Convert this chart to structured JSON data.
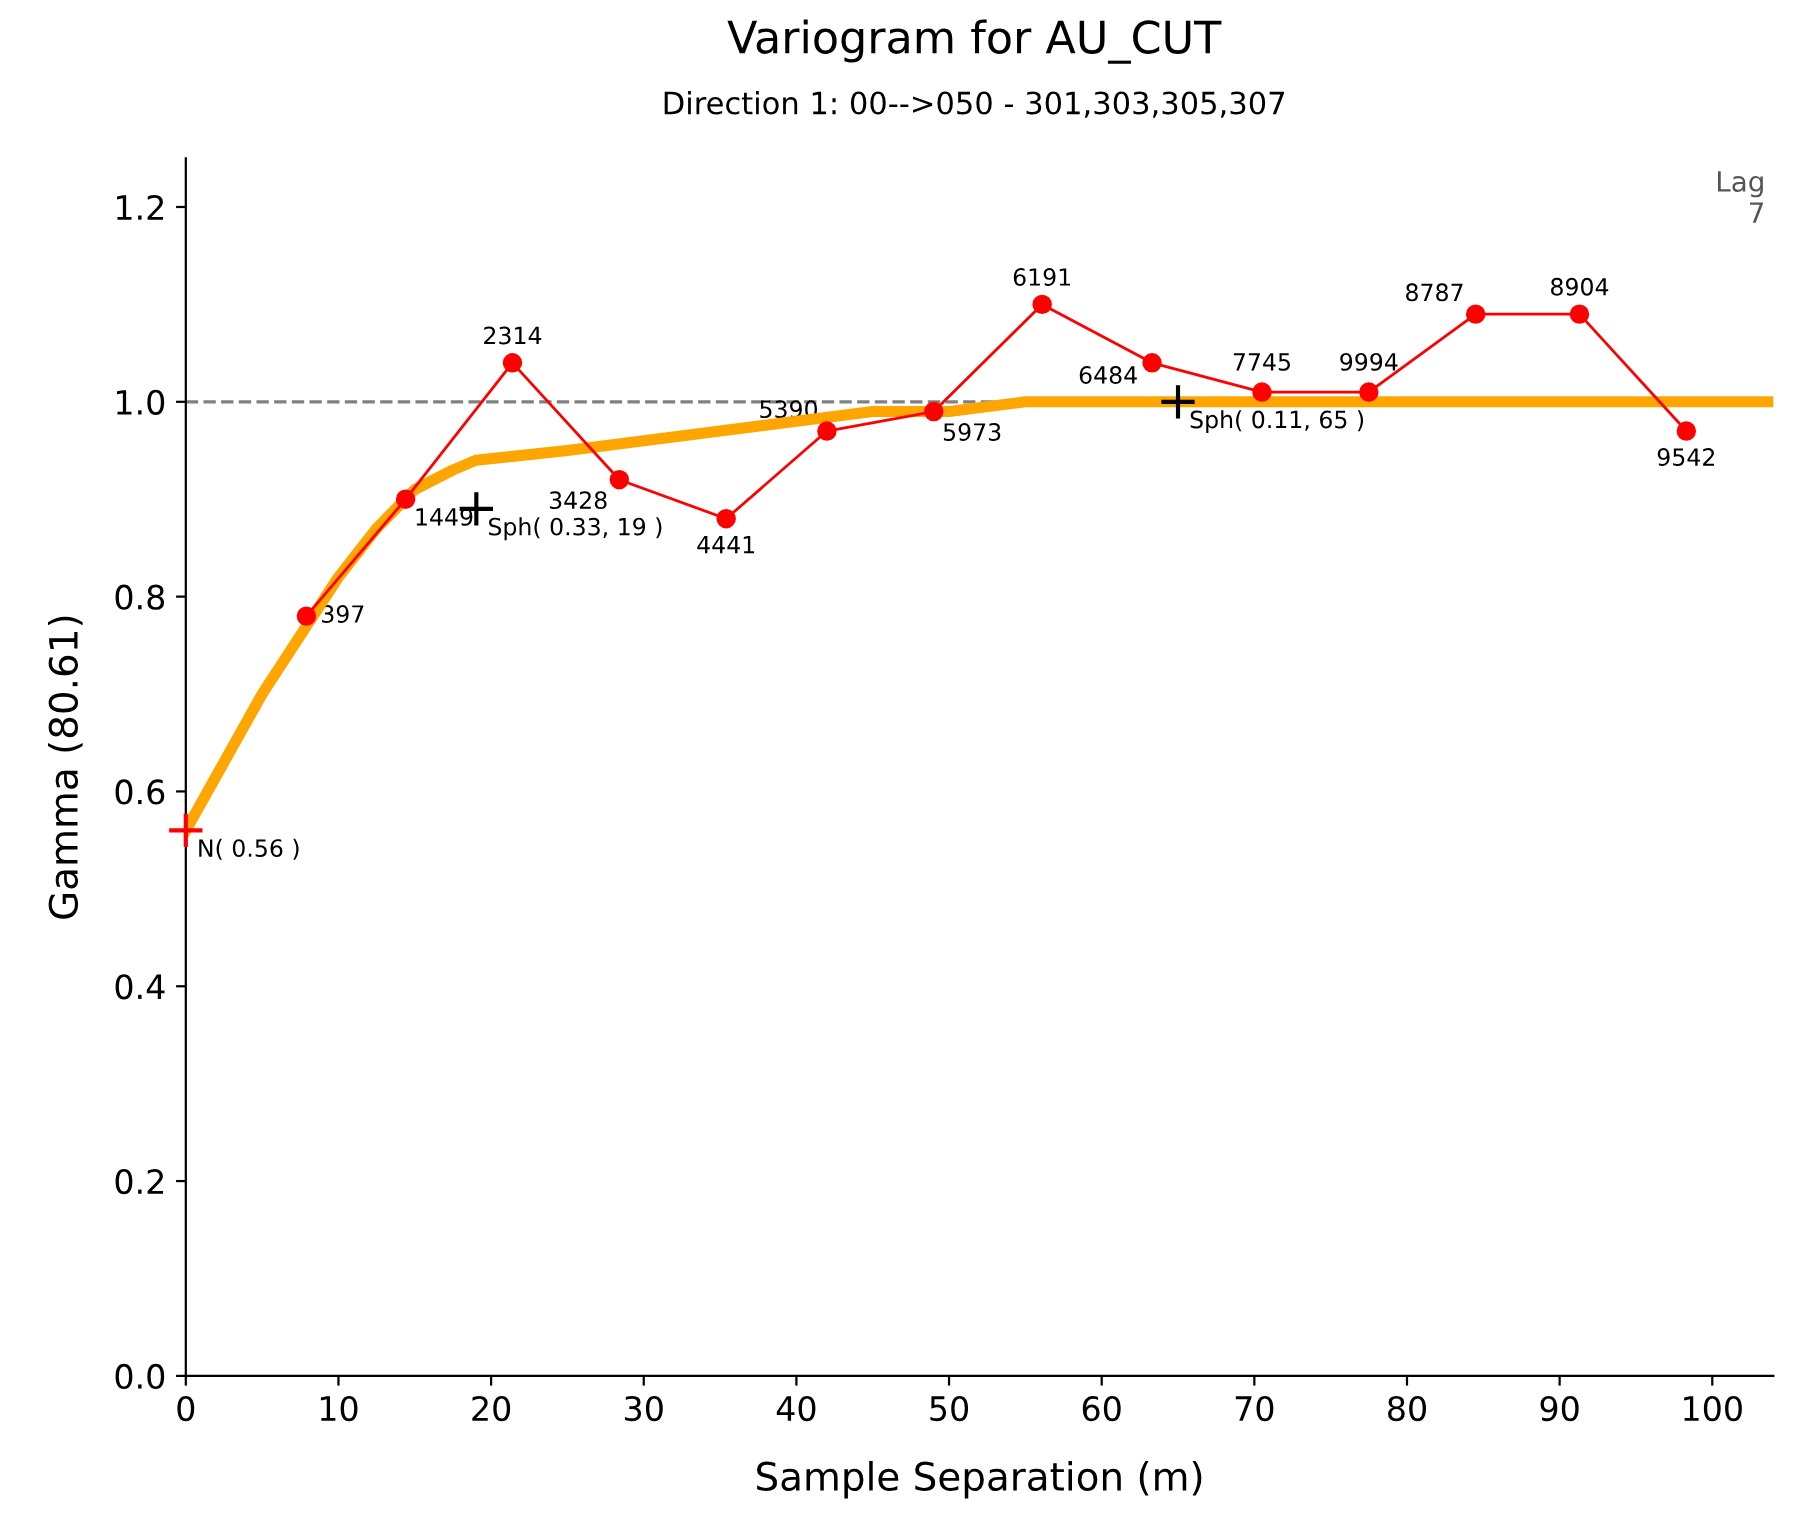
{
  "chart_data": {
    "type": "line",
    "title": "Variogram for AU_CUT",
    "subtitle": "Direction 1: 00-->050 - 301,303,305,307",
    "xlabel": "Sample Separation (m)",
    "ylabel": "Gamma (80.61)",
    "xlim": [
      0,
      104
    ],
    "ylim": [
      0,
      1.25
    ],
    "xticks": [
      0,
      10,
      20,
      30,
      40,
      50,
      60,
      70,
      80,
      90,
      100
    ],
    "yticks": [
      {
        "value": 0,
        "label": "0.0"
      },
      {
        "value": 0.2,
        "label": "0.2"
      },
      {
        "value": 0.4,
        "label": "0.4"
      },
      {
        "value": 0.6,
        "label": "0.6"
      },
      {
        "value": 0.8,
        "label": "0.8"
      },
      {
        "value": 1.0,
        "label": "1.0"
      },
      {
        "value": 1.2,
        "label": "1.2"
      }
    ],
    "grid": false,
    "legend": false,
    "series": [
      {
        "color": "#ff0000",
        "marker": "circle",
        "x": [
          7.9,
          14.4,
          21.4,
          28.4,
          35.4,
          42.0,
          49.0,
          56.1,
          63.3,
          70.5,
          77.5,
          84.5,
          91.3,
          98.3
        ],
        "values": [
          0.78,
          0.9,
          1.04,
          0.92,
          0.88,
          0.97,
          0.99,
          1.1,
          1.04,
          1.01,
          1.01,
          1.09,
          1.09,
          0.97
        ]
      },
      {
        "color": "#ffa500",
        "marker": "none",
        "x": [
          0,
          2.5,
          5,
          7.5,
          10,
          12.5,
          15,
          17.5,
          19,
          25,
          30,
          35,
          40,
          45,
          50,
          55,
          60,
          65,
          104
        ],
        "values": [
          0.56,
          0.63,
          0.7,
          0.76,
          0.82,
          0.87,
          0.91,
          0.93,
          0.94,
          0.95,
          0.96,
          0.97,
          0.98,
          0.99,
          0.99,
          1.0,
          1.0,
          1.0,
          1.0
        ]
      }
    ],
    "ref_lines": [
      {
        "axis": "y",
        "value": 1.0,
        "color": "#808080",
        "line_style": "dashed"
      }
    ],
    "annotations": [
      {
        "text": "397",
        "x": 7.9,
        "y": 0.78
      },
      {
        "text": "1449",
        "x": 14.4,
        "y": 0.9
      },
      {
        "text": "2314",
        "x": 21.4,
        "y": 1.04
      },
      {
        "text": "3428",
        "x": 28.4,
        "y": 0.92
      },
      {
        "text": "4441",
        "x": 35.4,
        "y": 0.88
      },
      {
        "text": "5390",
        "x": 42.0,
        "y": 0.97
      },
      {
        "text": "5973",
        "x": 49.0,
        "y": 0.99
      },
      {
        "text": "6191",
        "x": 56.1,
        "y": 1.1
      },
      {
        "text": "6484",
        "x": 63.3,
        "y": 1.04
      },
      {
        "text": "7745",
        "x": 70.5,
        "y": 1.01
      },
      {
        "text": "9994",
        "x": 77.5,
        "y": 1.01
      },
      {
        "text": "8787",
        "x": 84.5,
        "y": 1.09
      },
      {
        "text": "8904",
        "x": 91.3,
        "y": 1.09
      },
      {
        "text": "9542",
        "x": 98.3,
        "y": 0.97
      },
      {
        "text": "N( 0.56 )",
        "x": 0,
        "y": 0.56
      },
      {
        "text": "Sph( 0.11, 65 )",
        "x": 65,
        "y": 1.0
      },
      "Sph( 0.33, 19 )",
      "Lag\n7"
    ]
  }
}
